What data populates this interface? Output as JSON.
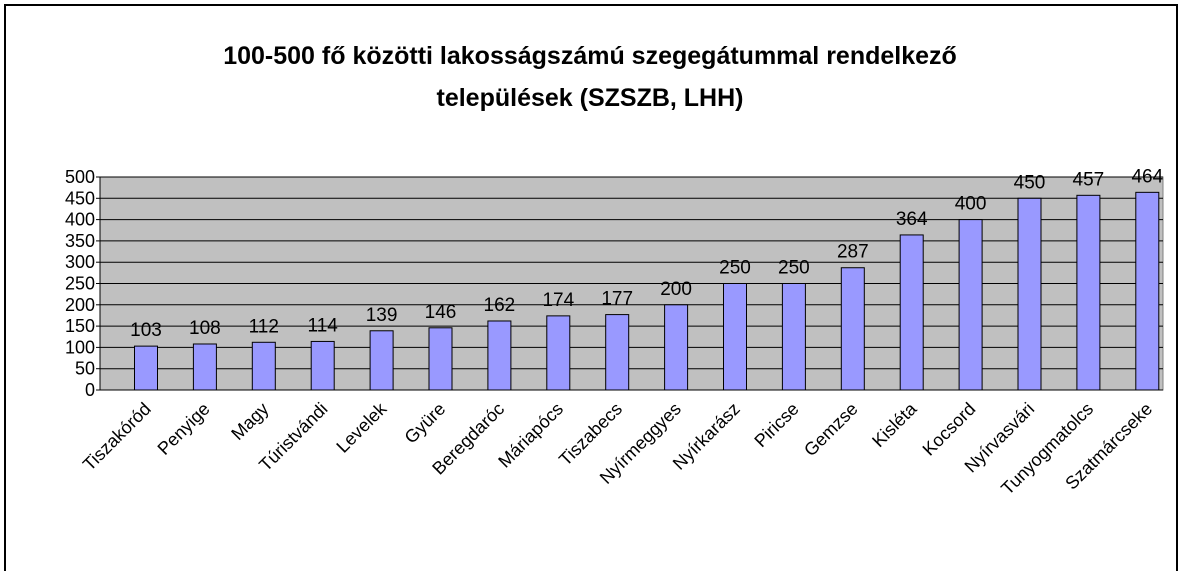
{
  "chart_data": {
    "type": "bar",
    "title": [
      "100-500 fő közötti lakosságszámú szegegátummal rendelkező",
      "települések (SZSZB, LHH)"
    ],
    "categories": [
      "Tiszakóród",
      "Penyige",
      "Magy",
      "Túristvándi",
      "Levelek",
      "Gyüre",
      "Beregdaróc",
      "Máriapócs",
      "Tiszabecs",
      "Nyírmeggyes",
      "Nyírkarász",
      "Piricse",
      "Gemzse",
      "Kisléta",
      "Kocsord",
      "Nyírvasvári",
      "Tunyogmatolcs",
      "Szatmárcseke"
    ],
    "values": [
      103,
      108,
      112,
      114,
      139,
      146,
      162,
      174,
      177,
      200,
      250,
      250,
      287,
      364,
      400,
      450,
      457,
      464
    ],
    "color": "#9999ff",
    "ylim": [
      0,
      500
    ],
    "yticks": [
      0,
      50,
      100,
      150,
      200,
      250,
      300,
      350,
      400,
      450,
      500
    ],
    "grid": true
  }
}
